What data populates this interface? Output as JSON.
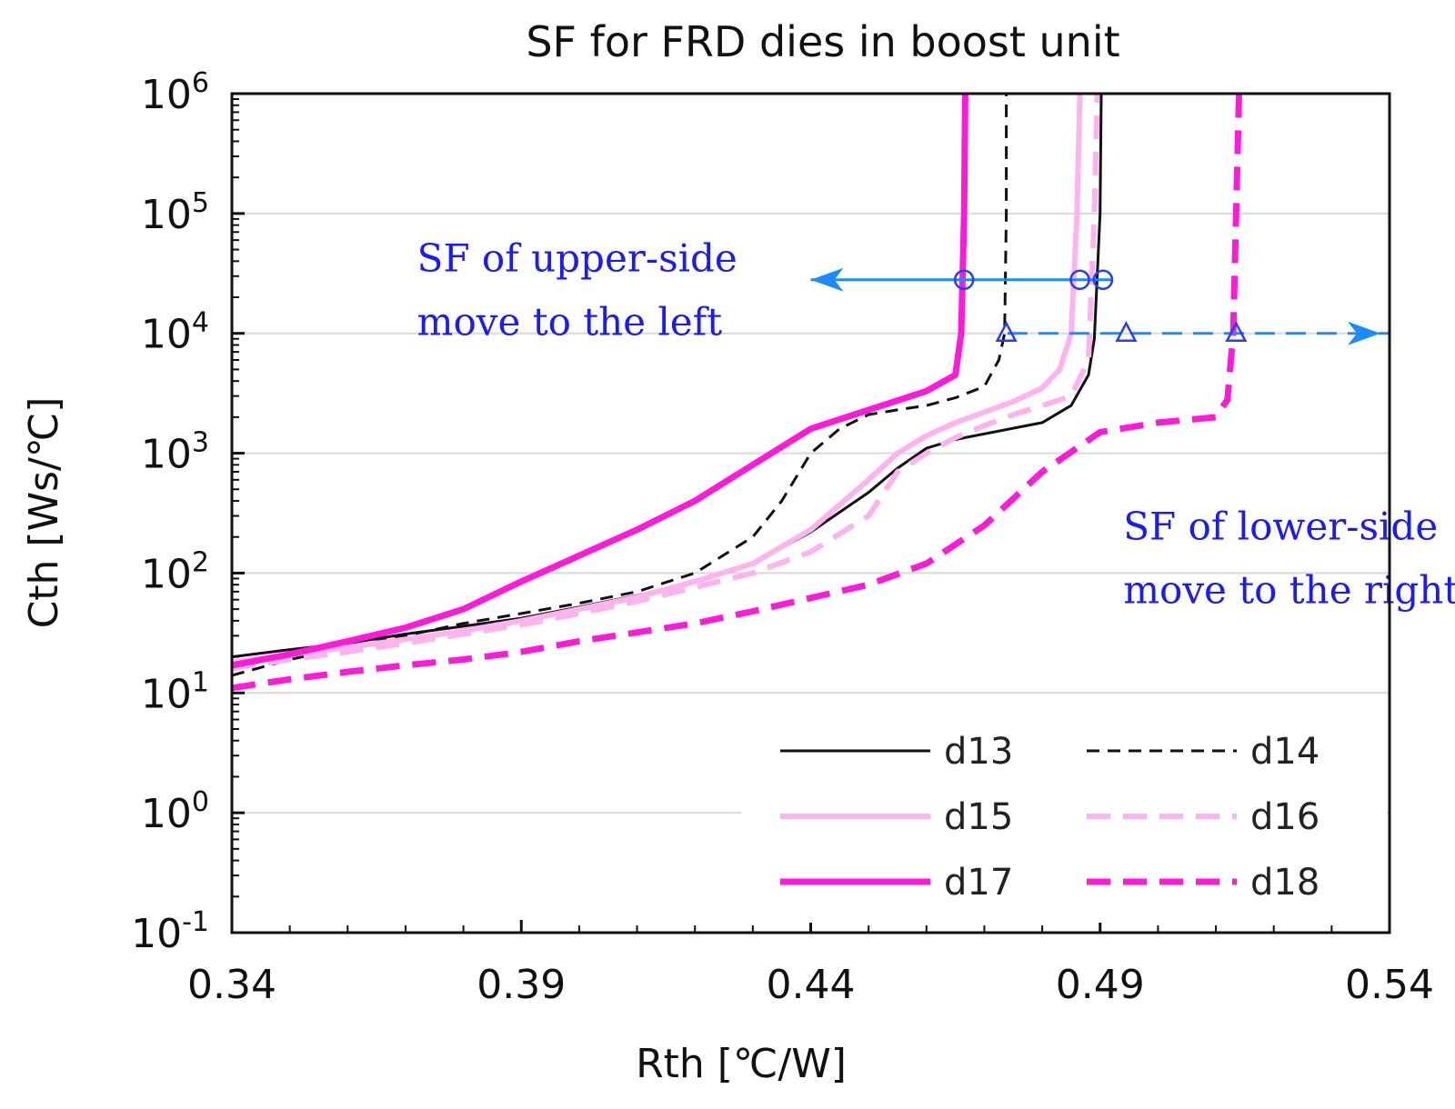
{
  "chart_data": {
    "type": "line",
    "title": "SF for FRD dies in boost unit",
    "xlabel": "Rth [℃/W]",
    "ylabel": "Cth [Ws/℃]",
    "xlim": [
      0.34,
      0.54
    ],
    "ylim_log10": [
      -1,
      6
    ],
    "y_scale": "log",
    "grid": "horizontal",
    "legend_position": "bottom-right",
    "x_ticks": [
      "0.34",
      "0.39",
      "0.44",
      "0.49",
      "0.54"
    ],
    "y_ticks": [
      {
        "base": "10",
        "exp": "6"
      },
      {
        "base": "10",
        "exp": "5"
      },
      {
        "base": "10",
        "exp": "4"
      },
      {
        "base": "10",
        "exp": "3"
      },
      {
        "base": "10",
        "exp": "2"
      },
      {
        "base": "10",
        "exp": "1"
      },
      {
        "base": "10",
        "exp": "0"
      },
      {
        "base": "10",
        "exp": "-1"
      }
    ],
    "series": [
      {
        "name": "d13",
        "color": "#111111",
        "style": "solid",
        "x": [
          0.34,
          0.35,
          0.36,
          0.37,
          0.38,
          0.39,
          0.4,
          0.41,
          0.42,
          0.43,
          0.44,
          0.45,
          0.455,
          0.46,
          0.465,
          0.47,
          0.48,
          0.485,
          0.488,
          0.489,
          0.49,
          0.4902
        ],
        "y": [
          20,
          23,
          26,
          31,
          36,
          42,
          52,
          65,
          85,
          120,
          220,
          470,
          750,
          1100,
          1300,
          1450,
          1800,
          2500,
          4500,
          9000,
          100000,
          1000000
        ]
      },
      {
        "name": "d14",
        "color": "#111111",
        "style": "dashed",
        "x": [
          0.34,
          0.35,
          0.36,
          0.37,
          0.38,
          0.39,
          0.4,
          0.41,
          0.42,
          0.43,
          0.435,
          0.44,
          0.445,
          0.45,
          0.455,
          0.46,
          0.465,
          0.47,
          0.4725,
          0.4735,
          0.4738,
          0.4738
        ],
        "y": [
          14,
          19,
          24,
          30,
          38,
          46,
          56,
          70,
          100,
          200,
          400,
          1000,
          1600,
          2100,
          2300,
          2500,
          2900,
          3600,
          6000,
          10000,
          100000,
          1000000
        ]
      },
      {
        "name": "d15",
        "color": "#ffb3ee",
        "style": "solid",
        "x": [
          0.34,
          0.35,
          0.36,
          0.37,
          0.38,
          0.39,
          0.4,
          0.41,
          0.42,
          0.43,
          0.44,
          0.45,
          0.455,
          0.46,
          0.465,
          0.47,
          0.475,
          0.48,
          0.483,
          0.485,
          0.486,
          0.4865
        ],
        "y": [
          18,
          21,
          24,
          28,
          33,
          40,
          50,
          63,
          85,
          120,
          230,
          600,
          1000,
          1400,
          1800,
          2200,
          2700,
          3500,
          5000,
          10000,
          100000,
          1000000
        ]
      },
      {
        "name": "d16",
        "color": "#ffb3ee",
        "style": "dashed",
        "x": [
          0.34,
          0.35,
          0.36,
          0.37,
          0.38,
          0.39,
          0.4,
          0.41,
          0.42,
          0.43,
          0.44,
          0.45,
          0.455,
          0.46,
          0.465,
          0.47,
          0.475,
          0.48,
          0.485,
          0.488,
          0.489,
          0.4895
        ],
        "y": [
          16,
          19,
          22,
          26,
          31,
          37,
          46,
          58,
          76,
          100,
          150,
          300,
          700,
          1000,
          1350,
          1700,
          2100,
          2500,
          3000,
          6000,
          100000,
          1000000
        ]
      },
      {
        "name": "d17",
        "color": "#ff1ad9",
        "style": "solid",
        "x": [
          0.34,
          0.35,
          0.36,
          0.37,
          0.38,
          0.39,
          0.4,
          0.41,
          0.42,
          0.43,
          0.44,
          0.45,
          0.46,
          0.465,
          0.466,
          0.4665,
          0.4667
        ],
        "y": [
          17,
          21,
          27,
          35,
          50,
          85,
          140,
          230,
          400,
          800,
          1600,
          2300,
          3300,
          4500,
          10000,
          100000,
          1000000
        ]
      },
      {
        "name": "d18",
        "color": "#ff1ad9",
        "style": "dashed",
        "x": [
          0.34,
          0.35,
          0.36,
          0.37,
          0.38,
          0.39,
          0.4,
          0.41,
          0.42,
          0.43,
          0.44,
          0.45,
          0.46,
          0.47,
          0.48,
          0.49,
          0.5,
          0.51,
          0.512,
          0.513,
          0.5135,
          0.514
        ],
        "y": [
          11,
          13,
          15,
          17,
          19,
          22,
          27,
          32,
          38,
          48,
          62,
          80,
          120,
          250,
          700,
          1500,
          1800,
          2000,
          2800,
          10000,
          100000,
          1000000
        ]
      }
    ],
    "annotations": [
      {
        "name": "upper-side",
        "lines": [
          "SF of upper-side",
          "move to the left"
        ],
        "direction": "left",
        "y": 28000,
        "x_from": 0.492,
        "x_to": 0.44,
        "marker": "circle",
        "markers_x": [
          0.4665,
          0.4865,
          0.4905
        ],
        "text_x": 0.372,
        "text_y": 33000
      },
      {
        "name": "lower-side",
        "lines": [
          "SF of lower-side",
          "move to the right"
        ],
        "direction": "right",
        "y": 10000,
        "x_from": 0.474,
        "x_to": 0.54,
        "marker": "triangle",
        "markers_x": [
          0.4738,
          0.4945,
          0.5135
        ],
        "text_x": 0.494,
        "text_y": 190
      }
    ],
    "arrow_color": "#1a8cff"
  }
}
